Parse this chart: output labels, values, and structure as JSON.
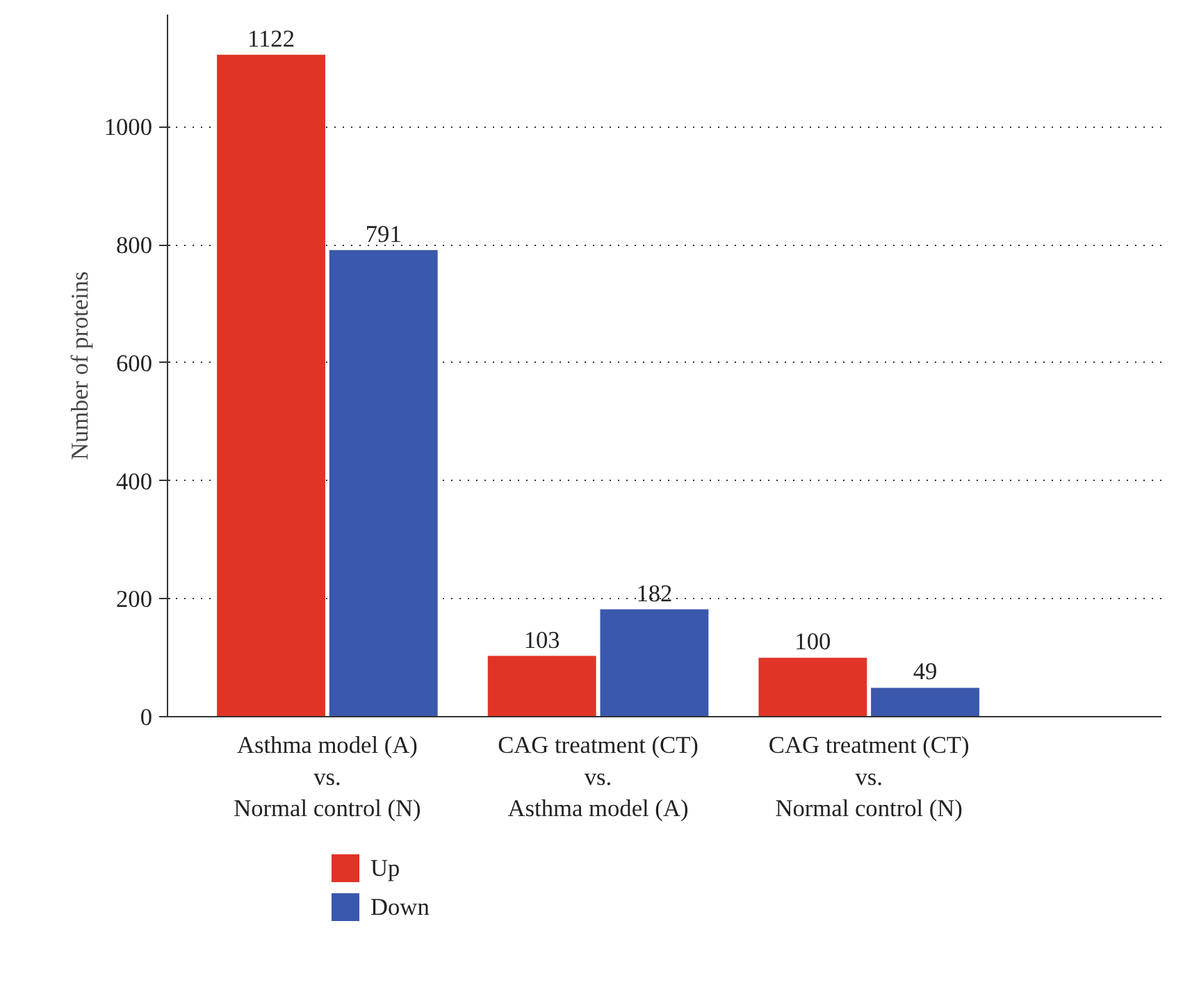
{
  "chart_data": {
    "type": "bar",
    "ylabel": "Number of proteins",
    "categories": [
      "Asthma model (A)\nvs.\nNormal control (N)",
      "CAG treatment (CT)\nvs.\nAsthma model (A)",
      "CAG treatment (CT)\nvs.\nNormal control (N)"
    ],
    "series": [
      {
        "name": "Up",
        "color": "#e03426",
        "values": [
          1122,
          103,
          100
        ]
      },
      {
        "name": "Down",
        "color": "#3a58ad",
        "values": [
          791,
          182,
          49
        ]
      }
    ],
    "ylim": [
      0,
      1190
    ],
    "yticks": [
      0,
      200,
      400,
      600,
      800,
      1000
    ],
    "grid": "y",
    "legend": "bottom left",
    "data_labels": true
  }
}
